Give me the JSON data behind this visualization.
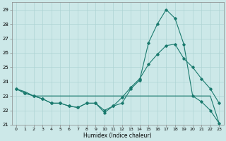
{
  "xlabel": "Humidex (Indice chaleur)",
  "bg_color": "#cce8e8",
  "grid_color": "#aed4d4",
  "line_color": "#1a7a6e",
  "ylim": [
    21,
    29.5
  ],
  "xlim": [
    -0.5,
    23.5
  ],
  "yticks": [
    21,
    22,
    23,
    24,
    25,
    26,
    27,
    28,
    29
  ],
  "xticks": [
    0,
    1,
    2,
    3,
    4,
    5,
    6,
    7,
    8,
    9,
    10,
    11,
    12,
    13,
    14,
    15,
    16,
    17,
    18,
    19,
    20,
    21,
    22,
    23
  ],
  "line1_x": [
    0,
    1,
    2,
    3,
    4,
    5,
    6,
    7,
    8,
    9,
    10,
    11,
    12,
    13,
    14,
    15,
    16,
    17,
    18,
    19,
    20,
    21,
    22,
    23
  ],
  "line1_y": [
    23.5,
    23.2,
    23.0,
    22.8,
    22.5,
    22.5,
    22.3,
    22.2,
    22.5,
    22.5,
    21.85,
    22.3,
    22.5,
    23.5,
    24.1,
    26.7,
    28.0,
    29.0,
    28.4,
    26.6,
    23.0,
    22.6,
    22.0,
    21.1
  ],
  "line2_x": [
    0,
    1,
    2,
    3,
    4,
    5,
    6,
    7,
    8,
    9,
    10,
    11,
    12,
    13,
    14,
    15,
    16,
    17,
    18,
    19,
    20,
    21,
    22,
    23
  ],
  "line2_y": [
    23.5,
    23.3,
    23.0,
    23.0,
    23.0,
    23.0,
    23.0,
    23.0,
    23.0,
    23.0,
    23.0,
    23.0,
    23.0,
    23.0,
    23.0,
    23.0,
    23.0,
    23.0,
    23.0,
    23.0,
    23.0,
    23.0,
    23.0,
    21.1
  ],
  "line3_x": [
    0,
    1,
    2,
    3,
    4,
    5,
    6,
    7,
    8,
    9,
    10,
    11,
    12,
    13,
    14,
    15,
    16,
    17,
    18,
    19,
    20,
    21,
    22,
    23
  ],
  "line3_y": [
    23.5,
    23.2,
    23.0,
    22.8,
    22.5,
    22.5,
    22.3,
    22.2,
    22.5,
    22.5,
    22.0,
    22.3,
    22.9,
    23.6,
    24.2,
    25.2,
    25.9,
    26.5,
    26.6,
    25.6,
    25.0,
    24.2,
    23.5,
    22.5
  ]
}
